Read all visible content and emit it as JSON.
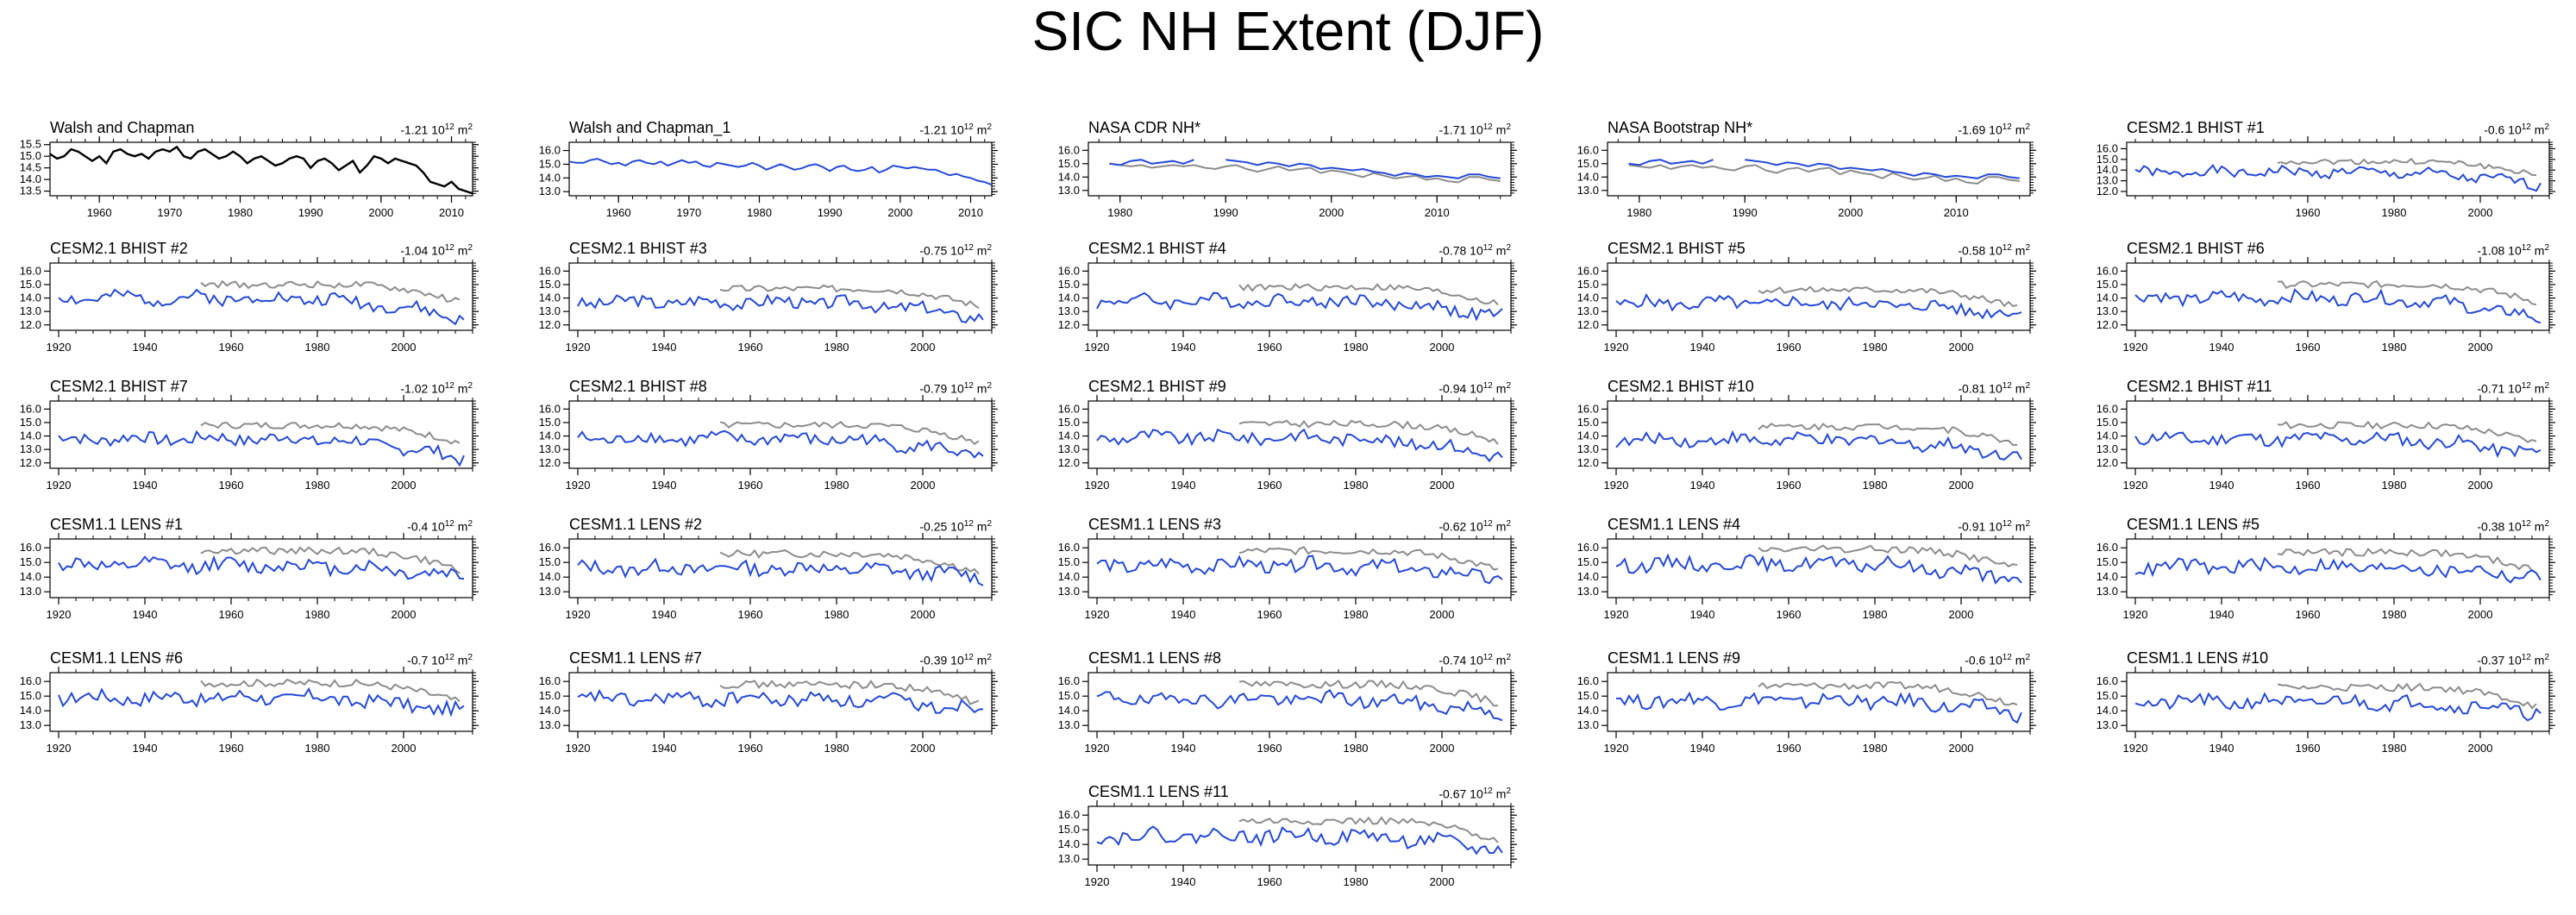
{
  "title": "SIC NH Extent (DJF)",
  "colors": {
    "obs": "#000000",
    "model": "#2449d8",
    "ref": "#8c8c8c"
  },
  "chart_data": [
    {
      "name": "Walsh and Chapman",
      "trend": "-1.21",
      "trend_unit": "10",
      "trend_exp": "12",
      "trend_m": "m",
      "trend_m_exp": "2",
      "type": "line",
      "xlim": [
        1953,
        2013
      ],
      "ylim": [
        13.3,
        15.6
      ],
      "xticks": [
        1960,
        1970,
        1980,
        1990,
        2000,
        2010
      ],
      "yticks": [
        13.5,
        14.0,
        14.5,
        15.0,
        15.5
      ],
      "series": [
        {
          "role": "obs",
          "start": 1953,
          "end": 2013,
          "values": [
            15.1,
            14.9,
            15.0,
            15.3,
            15.2,
            15.0,
            14.8,
            15.0,
            14.7,
            15.2,
            15.3,
            15.1,
            15.0,
            15.1,
            14.9,
            15.2,
            15.3,
            15.2,
            15.4,
            15.0,
            14.9,
            15.2,
            15.3,
            15.1,
            14.9,
            15.0,
            15.2,
            15.0,
            14.7,
            14.9,
            15.0,
            14.8,
            14.6,
            14.7,
            14.9,
            15.0,
            14.9,
            14.5,
            14.8,
            14.9,
            14.7,
            14.4,
            14.6,
            14.8,
            14.3,
            14.6,
            15.0,
            14.9,
            14.7,
            14.9,
            14.8,
            14.7,
            14.6,
            14.3,
            13.9,
            13.8,
            13.7,
            13.9,
            13.6,
            13.5,
            13.4
          ]
        }
      ]
    },
    {
      "name": "Walsh and Chapman_1",
      "trend": "-1.21",
      "trend_unit": "10",
      "trend_exp": "12",
      "trend_m": "m",
      "trend_m_exp": "2",
      "type": "line",
      "xlim": [
        1953,
        2013
      ],
      "ylim": [
        12.7,
        16.6
      ],
      "xticks": [
        1960,
        1970,
        1980,
        1990,
        2000,
        2010
      ],
      "yticks": [
        13.0,
        14.0,
        15.0,
        16.0
      ],
      "series": [
        {
          "role": "model",
          "start": 1953,
          "end": 2013,
          "values": [
            15.2,
            15.1,
            15.1,
            15.3,
            15.4,
            15.2,
            15.0,
            15.1,
            14.9,
            15.2,
            15.3,
            15.1,
            15.0,
            15.2,
            14.9,
            15.1,
            15.3,
            15.1,
            15.2,
            14.9,
            14.8,
            15.1,
            15.0,
            14.9,
            14.8,
            14.9,
            15.1,
            14.9,
            14.6,
            14.8,
            15.0,
            14.8,
            14.6,
            14.7,
            14.9,
            15.0,
            14.8,
            14.5,
            14.8,
            14.9,
            14.6,
            14.5,
            14.6,
            14.8,
            14.4,
            14.6,
            14.9,
            14.8,
            14.7,
            14.8,
            14.7,
            14.6,
            14.6,
            14.4,
            14.2,
            14.3,
            14.1,
            14.0,
            13.8,
            13.7,
            13.5
          ]
        }
      ]
    },
    {
      "name": "NASA CDR NH*",
      "trend": "-1.71",
      "trend_unit": "10",
      "trend_exp": "12",
      "trend_m": "m",
      "trend_m_exp": "2",
      "type": "line",
      "xlim": [
        1977,
        2017
      ],
      "ylim": [
        12.6,
        16.6
      ],
      "xticks": [
        1980,
        1990,
        2000,
        2010
      ],
      "yticks": [
        13.0,
        14.0,
        15.0,
        16.0
      ],
      "series": [
        {
          "role": "ref",
          "start": 1979,
          "end": 2016,
          "values": [
            15.0,
            14.9,
            14.8,
            14.9,
            14.7,
            14.8,
            14.9,
            14.8,
            14.9,
            14.7,
            14.6,
            14.8,
            14.9,
            14.6,
            14.4,
            14.6,
            14.8,
            14.5,
            14.6,
            14.7,
            14.3,
            14.5,
            14.4,
            14.2,
            14.0,
            14.3,
            14.1,
            13.9,
            14.0,
            14.1,
            13.8,
            13.9,
            13.7,
            13.6,
            14.0,
            14.0,
            13.8,
            13.7
          ]
        },
        {
          "role": "model",
          "start": 1979,
          "end": 2016,
          "values": [
            15.0,
            14.9,
            15.2,
            15.3,
            15.0,
            15.1,
            15.2,
            15.0,
            15.3,
            null,
            null,
            15.3,
            15.2,
            15.1,
            14.9,
            15.1,
            15.0,
            14.8,
            15.0,
            14.9,
            14.6,
            14.7,
            14.6,
            14.5,
            14.6,
            14.4,
            14.3,
            14.1,
            14.3,
            14.2,
            14.0,
            14.1,
            14.0,
            13.9,
            14.2,
            14.2,
            14.0,
            13.9
          ]
        }
      ]
    },
    {
      "name": "NASA Bootstrap NH*",
      "trend": "-1.69",
      "trend_unit": "10",
      "trend_exp": "12",
      "trend_m": "m",
      "trend_m_exp": "2",
      "type": "line",
      "xlim": [
        1977,
        2017
      ],
      "ylim": [
        12.6,
        16.6
      ],
      "xticks": [
        1980,
        1990,
        2000,
        2010
      ],
      "yticks": [
        13.0,
        14.0,
        15.0,
        16.0
      ],
      "series": [
        {
          "role": "ref",
          "start": 1979,
          "end": 2016,
          "values": [
            14.9,
            14.8,
            14.7,
            14.9,
            14.6,
            14.8,
            14.9,
            14.7,
            14.8,
            14.6,
            14.5,
            14.8,
            14.9,
            14.5,
            14.3,
            14.6,
            14.7,
            14.4,
            14.6,
            14.7,
            14.2,
            14.5,
            14.3,
            14.2,
            13.9,
            14.3,
            14.0,
            13.8,
            13.9,
            14.1,
            13.7,
            13.9,
            13.6,
            13.5,
            14.0,
            14.0,
            13.8,
            13.7
          ]
        },
        {
          "role": "model",
          "start": 1979,
          "end": 2016,
          "values": [
            15.0,
            14.9,
            15.2,
            15.3,
            15.0,
            15.1,
            15.2,
            15.0,
            15.3,
            null,
            null,
            15.3,
            15.2,
            15.1,
            14.9,
            15.1,
            15.0,
            14.8,
            15.0,
            14.9,
            14.6,
            14.7,
            14.6,
            14.5,
            14.6,
            14.4,
            14.3,
            14.1,
            14.3,
            14.2,
            14.0,
            14.1,
            14.0,
            13.9,
            14.2,
            14.2,
            14.0,
            13.9
          ]
        }
      ]
    },
    {
      "name": "CESM2.1 BHIST #1",
      "trend": "-0.6",
      "trend_unit": "10",
      "trend_exp": "12",
      "trend_m": "m",
      "trend_m_exp": "2",
      "type": "line",
      "xlim": [
        1918,
        2016
      ],
      "ylim": [
        11.6,
        16.6
      ],
      "xticks": [
        1960,
        1980,
        2000
      ],
      "yticks": [
        12.0,
        13.0,
        14.0,
        15.0,
        16.0
      ],
      "seed": 1,
      "mbase": 13.8,
      "mdrop": 1.2
    },
    {
      "name": "CESM2.1 BHIST #2",
      "trend": "-1.04",
      "trend_unit": "10",
      "trend_exp": "12",
      "trend_m": "m",
      "trend_m_exp": "2",
      "type": "line",
      "xlim": [
        1918,
        2016
      ],
      "ylim": [
        11.6,
        16.6
      ],
      "xticks": [
        1920,
        1940,
        1960,
        1980,
        2000
      ],
      "yticks": [
        12.0,
        13.0,
        14.0,
        15.0,
        16.0
      ],
      "seed": 2,
      "mbase": 14.0,
      "mdrop": 1.6
    },
    {
      "name": "CESM2.1 BHIST #3",
      "trend": "-0.75",
      "trend_unit": "10",
      "trend_exp": "12",
      "trend_m": "m",
      "trend_m_exp": "2",
      "type": "line",
      "xlim": [
        1918,
        2016
      ],
      "ylim": [
        11.6,
        16.6
      ],
      "xticks": [
        1920,
        1940,
        1960,
        1980,
        2000
      ],
      "yticks": [
        12.0,
        13.0,
        14.0,
        15.0,
        16.0
      ],
      "seed": 3,
      "mbase": 13.7,
      "mdrop": 1.2
    },
    {
      "name": "CESM2.1 BHIST #4",
      "trend": "-0.78",
      "trend_unit": "10",
      "trend_exp": "12",
      "trend_m": "m",
      "trend_m_exp": "2",
      "type": "line",
      "xlim": [
        1918,
        2016
      ],
      "ylim": [
        11.6,
        16.6
      ],
      "xticks": [
        1920,
        1940,
        1960,
        1980,
        2000
      ],
      "yticks": [
        12.0,
        13.0,
        14.0,
        15.0,
        16.0
      ],
      "seed": 4,
      "mbase": 13.8,
      "mdrop": 1.2
    },
    {
      "name": "CESM2.1 BHIST #5",
      "trend": "-0.58",
      "trend_unit": "10",
      "trend_exp": "12",
      "trend_m": "m",
      "trend_m_exp": "2",
      "type": "line",
      "xlim": [
        1918,
        2016
      ],
      "ylim": [
        11.6,
        16.6
      ],
      "xticks": [
        1920,
        1940,
        1960,
        1980,
        2000
      ],
      "yticks": [
        12.0,
        13.0,
        14.0,
        15.0,
        16.0
      ],
      "seed": 5,
      "mbase": 13.6,
      "mdrop": 0.9
    },
    {
      "name": "CESM2.1 BHIST #6",
      "trend": "-1.08",
      "trend_unit": "10",
      "trend_exp": "12",
      "trend_m": "m",
      "trend_m_exp": "2",
      "type": "line",
      "xlim": [
        1918,
        2016
      ],
      "ylim": [
        11.6,
        16.6
      ],
      "xticks": [
        1920,
        1940,
        1960,
        1980,
        2000
      ],
      "yticks": [
        12.0,
        13.0,
        14.0,
        15.0,
        16.0
      ],
      "seed": 6,
      "mbase": 14.0,
      "mdrop": 1.6
    },
    {
      "name": "CESM2.1 BHIST #7",
      "trend": "-1.02",
      "trend_unit": "10",
      "trend_exp": "12",
      "trend_m": "m",
      "trend_m_exp": "2",
      "type": "line",
      "xlim": [
        1918,
        2016
      ],
      "ylim": [
        11.6,
        16.6
      ],
      "xticks": [
        1920,
        1940,
        1960,
        1980,
        2000
      ],
      "yticks": [
        12.0,
        13.0,
        14.0,
        15.0,
        16.0
      ],
      "seed": 7,
      "mbase": 13.8,
      "mdrop": 1.5
    },
    {
      "name": "CESM2.1 BHIST #8",
      "trend": "-0.79",
      "trend_unit": "10",
      "trend_exp": "12",
      "trend_m": "m",
      "trend_m_exp": "2",
      "type": "line",
      "xlim": [
        1918,
        2016
      ],
      "ylim": [
        11.6,
        16.6
      ],
      "xticks": [
        1920,
        1940,
        1960,
        1980,
        2000
      ],
      "yticks": [
        12.0,
        13.0,
        14.0,
        15.0,
        16.0
      ],
      "seed": 8,
      "mbase": 13.8,
      "mdrop": 1.3
    },
    {
      "name": "CESM2.1 BHIST #9",
      "trend": "-0.94",
      "trend_unit": "10",
      "trend_exp": "12",
      "trend_m": "m",
      "trend_m_exp": "2",
      "type": "line",
      "xlim": [
        1918,
        2016
      ],
      "ylim": [
        11.6,
        16.6
      ],
      "xticks": [
        1920,
        1940,
        1960,
        1980,
        2000
      ],
      "yticks": [
        12.0,
        13.0,
        14.0,
        15.0,
        16.0
      ],
      "seed": 9,
      "mbase": 13.9,
      "mdrop": 1.4
    },
    {
      "name": "CESM2.1 BHIST #10",
      "trend": "-0.81",
      "trend_unit": "10",
      "trend_exp": "12",
      "trend_m": "m",
      "trend_m_exp": "2",
      "type": "line",
      "xlim": [
        1918,
        2016
      ],
      "ylim": [
        11.6,
        16.6
      ],
      "xticks": [
        1920,
        1940,
        1960,
        1980,
        2000
      ],
      "yticks": [
        12.0,
        13.0,
        14.0,
        15.0,
        16.0
      ],
      "seed": 10,
      "mbase": 13.7,
      "mdrop": 1.2
    },
    {
      "name": "CESM2.1 BHIST #11",
      "trend": "-0.71",
      "trend_unit": "10",
      "trend_exp": "12",
      "trend_m": "m",
      "trend_m_exp": "2",
      "type": "line",
      "xlim": [
        1918,
        2016
      ],
      "ylim": [
        11.6,
        16.6
      ],
      "xticks": [
        1920,
        1940,
        1960,
        1980,
        2000
      ],
      "yticks": [
        12.0,
        13.0,
        14.0,
        15.0,
        16.0
      ],
      "seed": 11,
      "mbase": 13.8,
      "mdrop": 1.2
    },
    {
      "name": "CESM1.1 LENS #1",
      "trend": "-0.4",
      "trend_unit": "10",
      "trend_exp": "12",
      "trend_m": "m",
      "trend_m_exp": "2",
      "type": "line",
      "xlim": [
        1918,
        2016
      ],
      "ylim": [
        12.6,
        16.6
      ],
      "xticks": [
        1920,
        1940,
        1960,
        1980,
        2000
      ],
      "yticks": [
        13.0,
        14.0,
        15.0,
        16.0
      ],
      "seed": 12,
      "mbase": 14.8,
      "mdrop": 0.8
    },
    {
      "name": "CESM1.1 LENS #2",
      "trend": "-0.25",
      "trend_unit": "10",
      "trend_exp": "12",
      "trend_m": "m",
      "trend_m_exp": "2",
      "type": "line",
      "xlim": [
        1918,
        2016
      ],
      "ylim": [
        12.6,
        16.6
      ],
      "xticks": [
        1920,
        1940,
        1960,
        1980,
        2000
      ],
      "yticks": [
        13.0,
        14.0,
        15.0,
        16.0
      ],
      "seed": 13,
      "mbase": 14.6,
      "mdrop": 0.6
    },
    {
      "name": "CESM1.1 LENS #3",
      "trend": "-0.62",
      "trend_unit": "10",
      "trend_exp": "12",
      "trend_m": "m",
      "trend_m_exp": "2",
      "type": "line",
      "xlim": [
        1918,
        2016
      ],
      "ylim": [
        12.6,
        16.6
      ],
      "xticks": [
        1920,
        1940,
        1960,
        1980,
        2000
      ],
      "yticks": [
        13.0,
        14.0,
        15.0,
        16.0
      ],
      "seed": 14,
      "mbase": 14.8,
      "mdrop": 1.0
    },
    {
      "name": "CESM1.1 LENS #4",
      "trend": "-0.91",
      "trend_unit": "10",
      "trend_exp": "12",
      "trend_m": "m",
      "trend_m_exp": "2",
      "type": "line",
      "xlim": [
        1918,
        2016
      ],
      "ylim": [
        12.6,
        16.6
      ],
      "xticks": [
        1920,
        1940,
        1960,
        1980,
        2000
      ],
      "yticks": [
        13.0,
        14.0,
        15.0,
        16.0
      ],
      "seed": 15,
      "mbase": 14.9,
      "mdrop": 1.2
    },
    {
      "name": "CESM1.1 LENS #5",
      "trend": "-0.38",
      "trend_unit": "10",
      "trend_exp": "12",
      "trend_m": "m",
      "trend_m_exp": "2",
      "type": "line",
      "xlim": [
        1918,
        2016
      ],
      "ylim": [
        12.6,
        16.6
      ],
      "xticks": [
        1920,
        1940,
        1960,
        1980,
        2000
      ],
      "yticks": [
        13.0,
        14.0,
        15.0,
        16.0
      ],
      "seed": 16,
      "mbase": 14.7,
      "mdrop": 0.7
    },
    {
      "name": "CESM1.1 LENS #6",
      "trend": "-0.7",
      "trend_unit": "10",
      "trend_exp": "12",
      "trend_m": "m",
      "trend_m_exp": "2",
      "type": "line",
      "xlim": [
        1918,
        2016
      ],
      "ylim": [
        12.6,
        16.6
      ],
      "xticks": [
        1920,
        1940,
        1960,
        1980,
        2000
      ],
      "yticks": [
        13.0,
        14.0,
        15.0,
        16.0
      ],
      "seed": 17,
      "mbase": 14.9,
      "mdrop": 1.0
    },
    {
      "name": "CESM1.1 LENS #7",
      "trend": "-0.39",
      "trend_unit": "10",
      "trend_exp": "12",
      "trend_m": "m",
      "trend_m_exp": "2",
      "type": "line",
      "xlim": [
        1918,
        2016
      ],
      "ylim": [
        12.6,
        16.6
      ],
      "xticks": [
        1920,
        1940,
        1960,
        1980,
        2000
      ],
      "yticks": [
        13.0,
        14.0,
        15.0,
        16.0
      ],
      "seed": 18,
      "mbase": 14.8,
      "mdrop": 0.7
    },
    {
      "name": "CESM1.1 LENS #8",
      "trend": "-0.74",
      "trend_unit": "10",
      "trend_exp": "12",
      "trend_m": "m",
      "trend_m_exp": "2",
      "type": "line",
      "xlim": [
        1918,
        2016
      ],
      "ylim": [
        12.6,
        16.6
      ],
      "xticks": [
        1920,
        1940,
        1960,
        1980,
        2000
      ],
      "yticks": [
        13.0,
        14.0,
        15.0,
        16.0
      ],
      "seed": 19,
      "mbase": 14.8,
      "mdrop": 1.0
    },
    {
      "name": "CESM1.1 LENS #9",
      "trend": "-0.6",
      "trend_unit": "10",
      "trend_exp": "12",
      "trend_m": "m",
      "trend_m_exp": "2",
      "type": "line",
      "xlim": [
        1918,
        2016
      ],
      "ylim": [
        12.6,
        16.6
      ],
      "xticks": [
        1920,
        1940,
        1960,
        1980,
        2000
      ],
      "yticks": [
        13.0,
        14.0,
        15.0,
        16.0
      ],
      "seed": 20,
      "mbase": 14.7,
      "mdrop": 0.9
    },
    {
      "name": "CESM1.1 LENS #10",
      "trend": "-0.37",
      "trend_unit": "10",
      "trend_exp": "12",
      "trend_m": "m",
      "trend_m_exp": "2",
      "type": "line",
      "xlim": [
        1918,
        2016
      ],
      "ylim": [
        12.6,
        16.6
      ],
      "xticks": [
        1920,
        1940,
        1960,
        1980,
        2000
      ],
      "yticks": [
        13.0,
        14.0,
        15.0,
        16.0
      ],
      "seed": 21,
      "mbase": 14.6,
      "mdrop": 0.7
    },
    {
      "name": "CESM1.1 LENS #11",
      "trend": "-0.67",
      "trend_unit": "10",
      "trend_exp": "12",
      "trend_m": "m",
      "trend_m_exp": "2",
      "type": "line",
      "xlim": [
        1918,
        2016
      ],
      "ylim": [
        12.6,
        16.6
      ],
      "xticks": [
        1920,
        1940,
        1960,
        1980,
        2000
      ],
      "yticks": [
        13.0,
        14.0,
        15.0,
        16.0
      ],
      "seed": 22,
      "mbase": 14.6,
      "mdrop": 1.0
    }
  ]
}
